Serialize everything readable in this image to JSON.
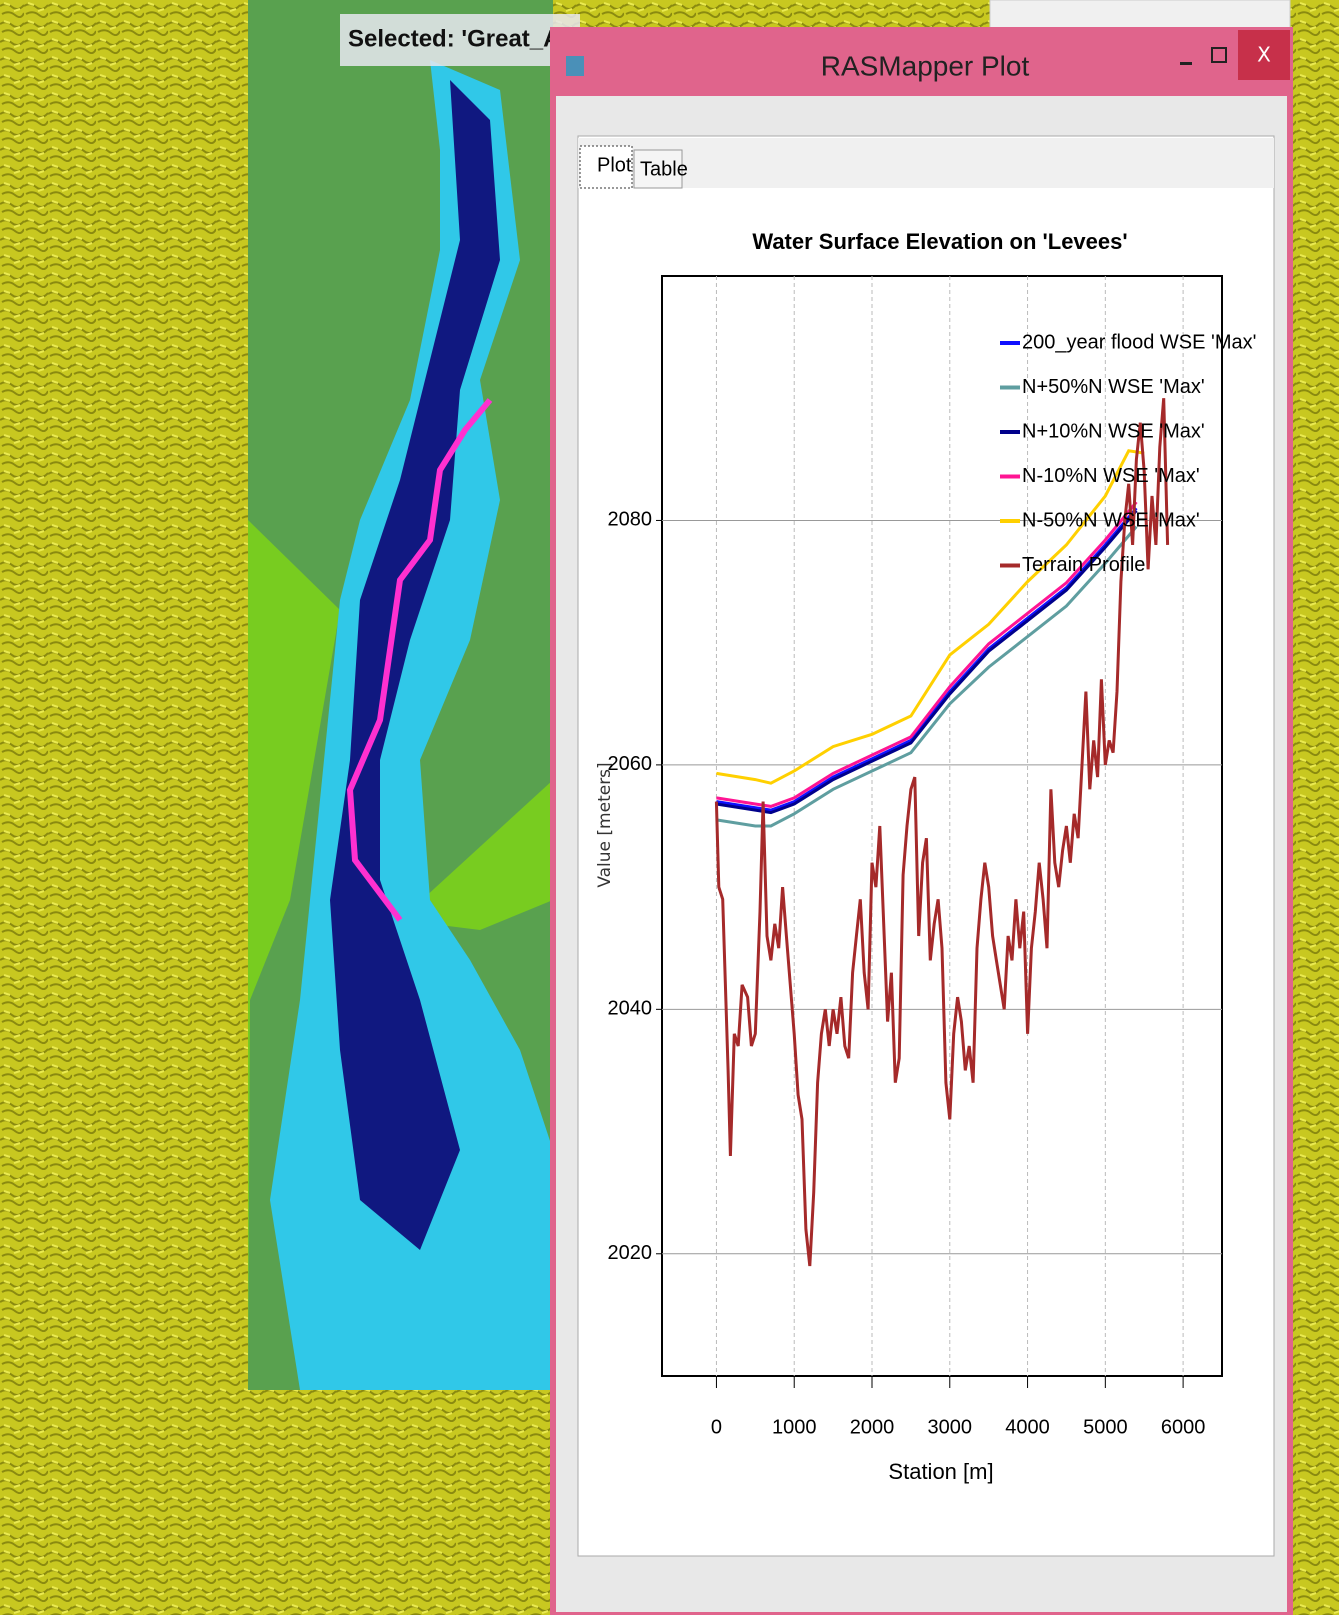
{
  "map": {
    "selected_label": "Selected: 'Great_Akaki ri"
  },
  "window": {
    "title": "RASMapper Plot",
    "close": "X"
  },
  "tabs": [
    "Plot",
    "Table"
  ],
  "chart_data": {
    "type": "line",
    "title": "Water Surface Elevation on 'Levees'",
    "x_label": "Station [m]",
    "y_label": "Value [meters]",
    "xlim": [
      -700,
      6500
    ],
    "ylim": [
      2010,
      2100
    ],
    "xticks": [
      0,
      1000,
      2000,
      3000,
      4000,
      5000,
      6000
    ],
    "yticks": [
      2020,
      2040,
      2060,
      2080
    ],
    "grid": true,
    "legend": "upper right",
    "series": [
      {
        "name": "200_year flood WSE 'Max'",
        "color": "#1010ff",
        "x": [
          0,
          500,
          700,
          1000,
          1500,
          2000,
          2500,
          3000,
          3500,
          4000,
          4500,
          5000,
          5400
        ],
        "values": [
          2057,
          2056.5,
          2056.3,
          2057,
          2059,
          2060.5,
          2062,
          2066,
          2069.5,
          2072,
          2074.5,
          2078,
          2081
        ]
      },
      {
        "name": "N+50%N WSE 'Max'",
        "color": "#5f9ea0",
        "x": [
          0,
          500,
          700,
          1000,
          1500,
          2000,
          2500,
          3000,
          3500,
          4000,
          4500,
          5000,
          5400
        ],
        "values": [
          2055.5,
          2055,
          2055,
          2056,
          2058,
          2059.5,
          2061,
          2065,
          2068,
          2070.5,
          2073,
          2076.5,
          2079.5
        ]
      },
      {
        "name": "N+10%N WSE 'Max'",
        "color": "#00008b",
        "x": [
          0,
          500,
          700,
          1000,
          1500,
          2000,
          2500,
          3000,
          3500,
          4000,
          4500,
          5000,
          5400
        ],
        "values": [
          2056.8,
          2056.3,
          2056.1,
          2056.8,
          2058.8,
          2060.3,
          2061.8,
          2065.8,
          2069.3,
          2071.8,
          2074.3,
          2077.8,
          2080.8
        ]
      },
      {
        "name": "N-10%N WSE 'Max'",
        "color": "#ff1493",
        "x": [
          0,
          500,
          700,
          1000,
          1500,
          2000,
          2500,
          3000,
          3500,
          4000,
          4500,
          5000,
          5400
        ],
        "values": [
          2057.3,
          2056.8,
          2056.6,
          2057.3,
          2059.3,
          2060.8,
          2062.3,
          2066.4,
          2069.9,
          2072.4,
          2074.9,
          2078.4,
          2081.5
        ]
      },
      {
        "name": "N-50%N WSE 'Max'",
        "color": "#ffd000",
        "x": [
          0,
          500,
          700,
          1000,
          1500,
          2000,
          2500,
          3000,
          3500,
          4000,
          4500,
          5000,
          5300,
          5500
        ],
        "values": [
          2059.3,
          2058.8,
          2058.5,
          2059.5,
          2061.5,
          2062.5,
          2064,
          2069,
          2071.5,
          2075,
          2078,
          2082,
          2085.7,
          2085.5
        ]
      },
      {
        "name": "Terrain Profile",
        "color": "#a52a2a",
        "x": [
          0,
          30,
          80,
          150,
          180,
          230,
          280,
          330,
          400,
          450,
          500,
          560,
          600,
          650,
          700,
          750,
          800,
          850,
          900,
          950,
          1000,
          1050,
          1100,
          1150,
          1200,
          1250,
          1300,
          1350,
          1400,
          1450,
          1500,
          1550,
          1600,
          1650,
          1700,
          1750,
          1800,
          1850,
          1900,
          1950,
          2000,
          2050,
          2100,
          2150,
          2200,
          2250,
          2300,
          2350,
          2400,
          2450,
          2500,
          2550,
          2600,
          2650,
          2700,
          2750,
          2800,
          2850,
          2900,
          2950,
          3000,
          3050,
          3100,
          3150,
          3200,
          3250,
          3300,
          3350,
          3400,
          3450,
          3500,
          3550,
          3600,
          3650,
          3700,
          3750,
          3800,
          3850,
          3900,
          3950,
          4000,
          4050,
          4100,
          4150,
          4200,
          4250,
          4300,
          4350,
          4400,
          4450,
          4500,
          4550,
          4600,
          4650,
          4700,
          4750,
          4800,
          4850,
          4900,
          4950,
          5000,
          5050,
          5100,
          5150,
          5200,
          5250,
          5300,
          5350,
          5400,
          5450,
          5500,
          5550,
          5600,
          5650,
          5700,
          5750,
          5800
        ],
        "values": [
          2057,
          2050,
          2049,
          2035,
          2028,
          2038,
          2037,
          2042,
          2041,
          2037,
          2038,
          2048,
          2057,
          2046,
          2044,
          2047,
          2045,
          2050,
          2046,
          2042,
          2038,
          2033,
          2031,
          2022,
          2019,
          2025,
          2034,
          2038,
          2040,
          2037,
          2040,
          2038,
          2041,
          2037,
          2036,
          2043,
          2046,
          2049,
          2043,
          2040,
          2052,
          2050,
          2055,
          2047,
          2039,
          2043,
          2034,
          2036,
          2051,
          2055,
          2058,
          2059,
          2046,
          2052,
          2054,
          2044,
          2047,
          2049,
          2045,
          2034,
          2031,
          2038,
          2041,
          2039,
          2035,
          2037,
          2034,
          2045,
          2049,
          2052,
          2050,
          2046,
          2044,
          2042,
          2040,
          2046,
          2044,
          2049,
          2045,
          2048,
          2038,
          2045,
          2048,
          2052,
          2049,
          2045,
          2058,
          2052,
          2050,
          2053,
          2055,
          2052,
          2056,
          2054,
          2060,
          2066,
          2058,
          2062,
          2059,
          2067,
          2060,
          2062,
          2061,
          2066,
          2075,
          2080,
          2083,
          2078,
          2085,
          2088,
          2084,
          2076,
          2082,
          2078,
          2086,
          2090,
          2078
        ]
      }
    ]
  }
}
